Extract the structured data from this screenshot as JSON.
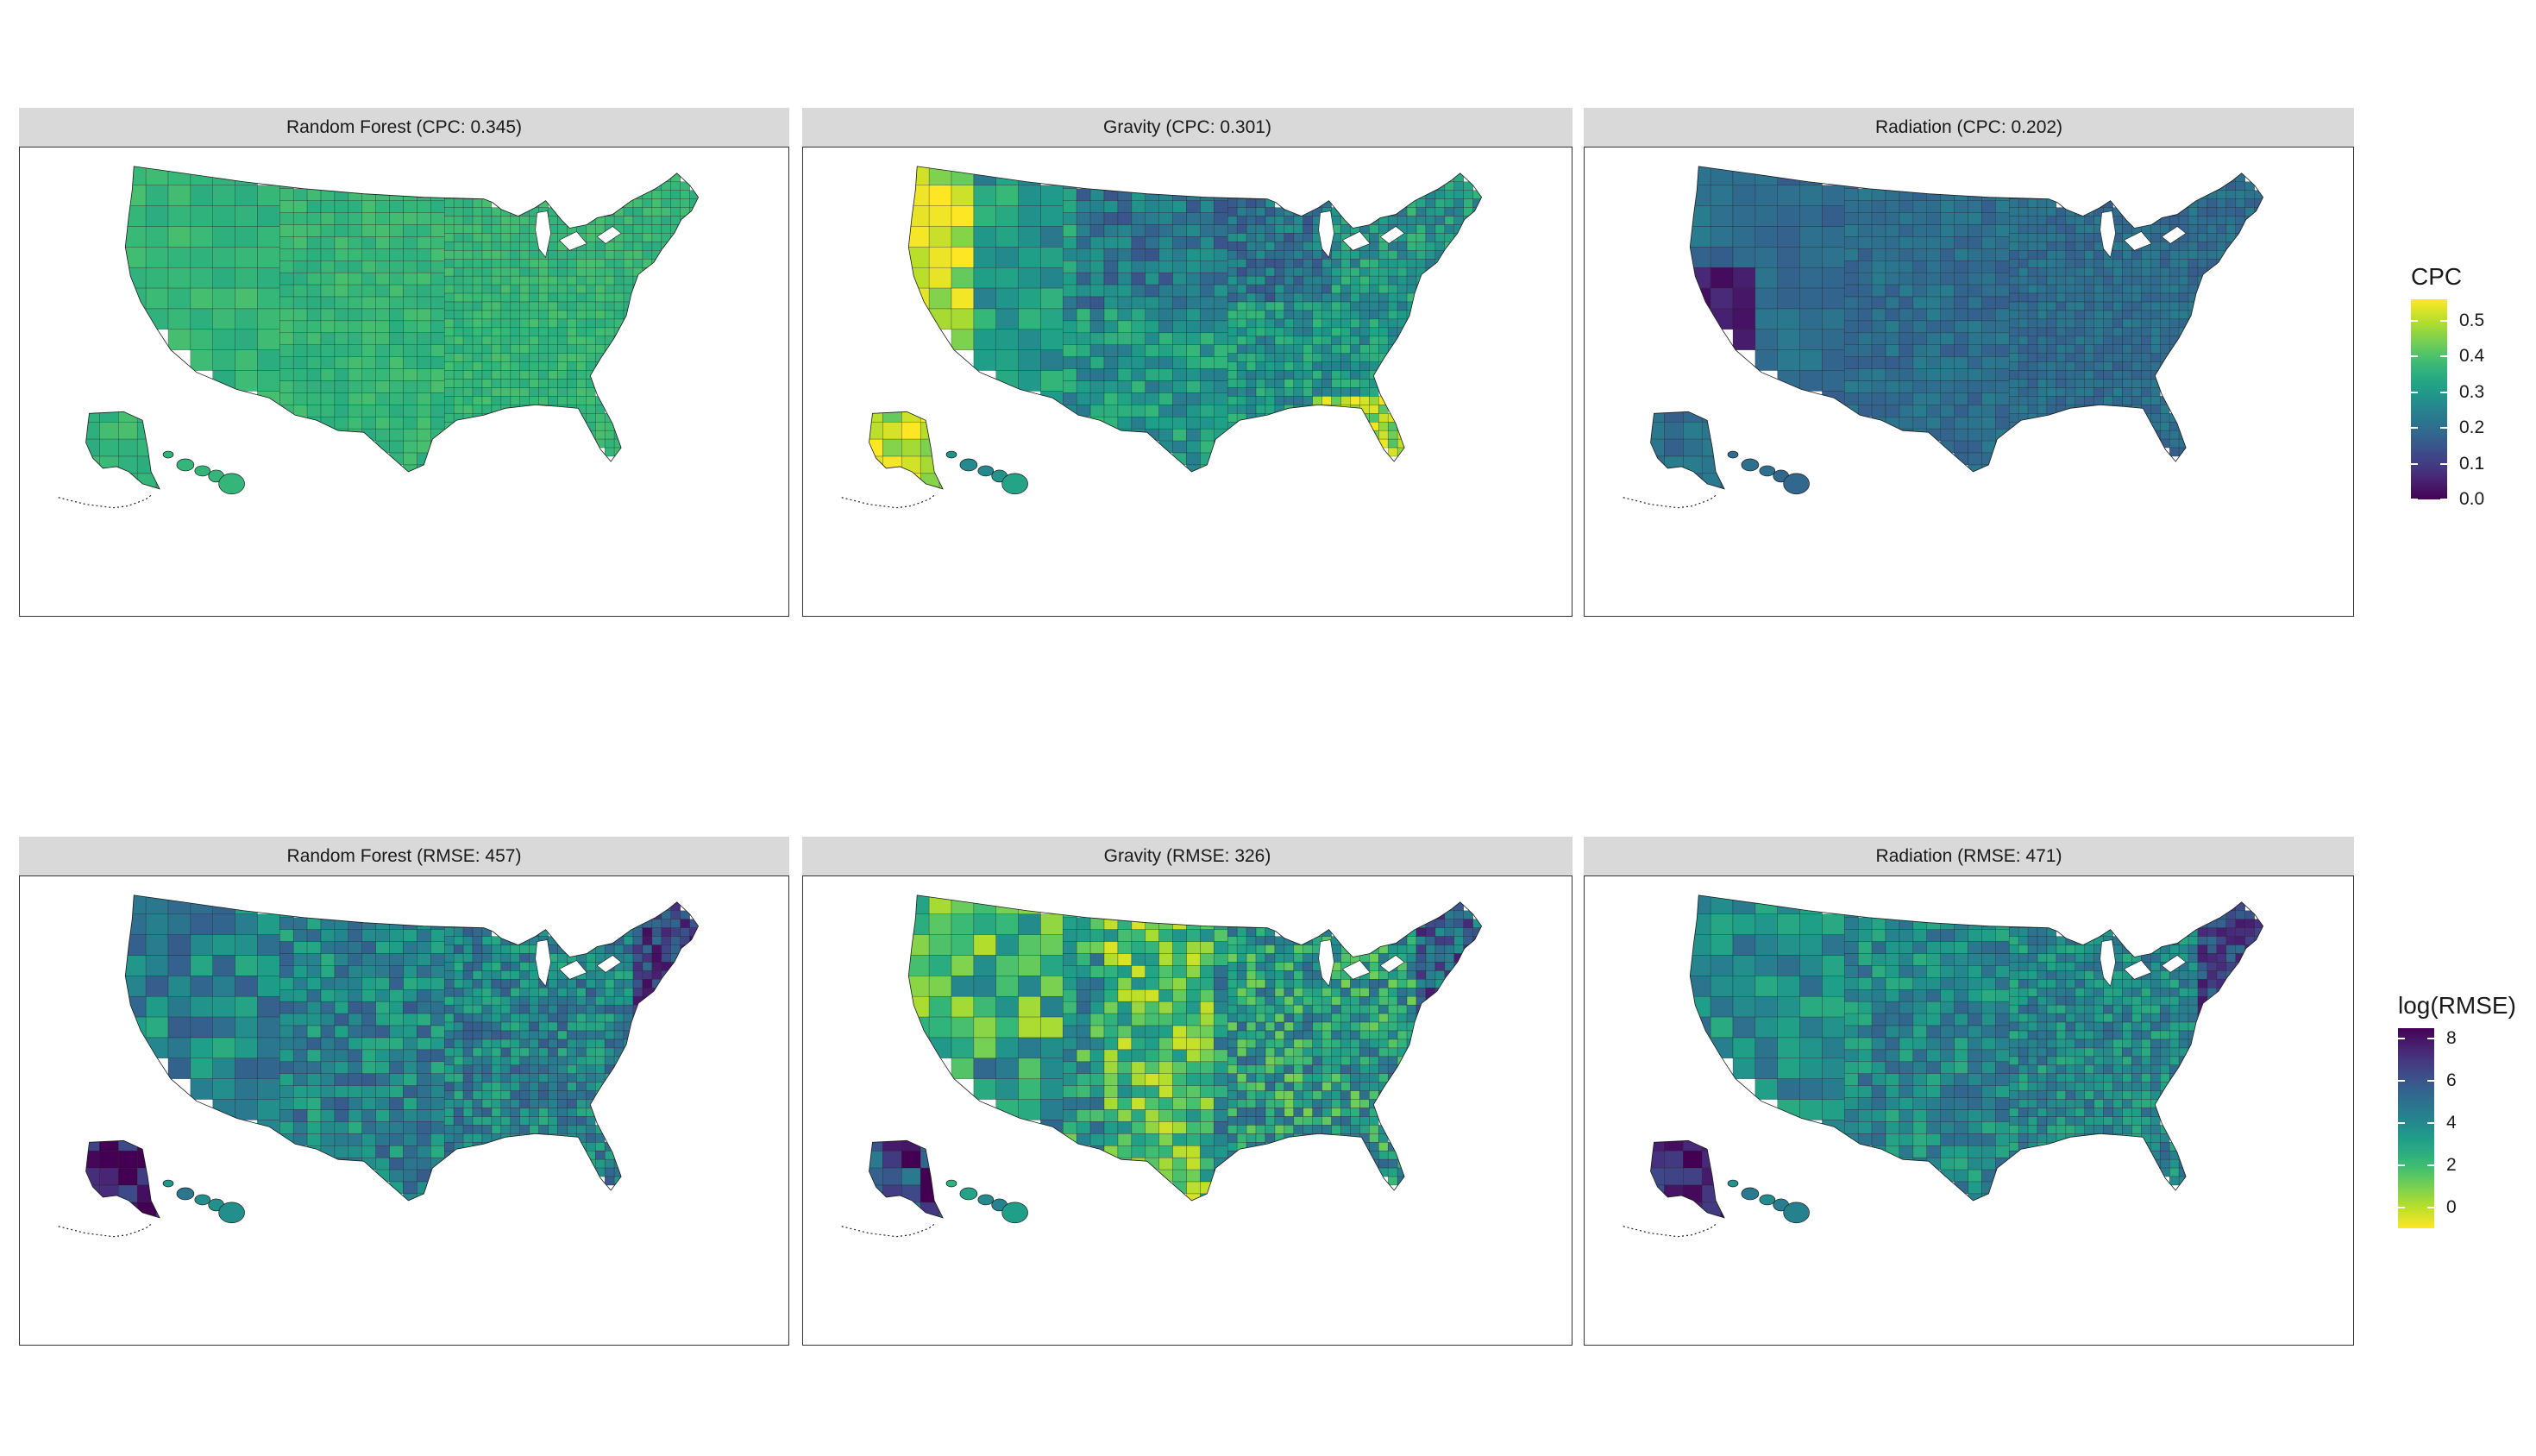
{
  "figure": {
    "rows": [
      {
        "metric": "CPC",
        "panels": [
          {
            "id": "rf-cpc",
            "title": "Random Forest (CPC: 0.345)",
            "model": "Random Forest",
            "score": 0.345,
            "base_level": 0.37,
            "variation": 0.05
          },
          {
            "id": "gravity-cpc",
            "title": "Gravity (CPC: 0.301)",
            "model": "Gravity",
            "score": 0.301,
            "base_level": 0.3,
            "variation": 0.16
          },
          {
            "id": "radiation-cpc",
            "title": "Radiation (CPC: 0.202)",
            "model": "Radiation",
            "score": 0.202,
            "base_level": 0.2,
            "variation": 0.07
          }
        ]
      },
      {
        "metric": "log(RMSE)",
        "panels": [
          {
            "id": "rf-rmse",
            "title": "Random Forest (RMSE: 457)",
            "model": "Random Forest",
            "score": 457,
            "base_level": 4.2,
            "variation": 1.6
          },
          {
            "id": "gravity-rmse",
            "title": "Gravity (RMSE: 326)",
            "model": "Gravity",
            "score": 326,
            "base_level": 3.2,
            "variation": 2.2
          },
          {
            "id": "radiation-rmse",
            "title": "Radiation (RMSE: 471)",
            "model": "Radiation",
            "score": 471,
            "base_level": 4.0,
            "variation": 1.4
          }
        ]
      }
    ]
  },
  "legends": {
    "cpc": {
      "title": "CPC",
      "ticks": [
        "0.5",
        "0.4",
        "0.3",
        "0.2",
        "0.1",
        "0.0"
      ],
      "tick_values": [
        0.5,
        0.4,
        0.3,
        0.2,
        0.1,
        0.0
      ],
      "range": [
        0.0,
        0.56
      ],
      "low_color": "#440154",
      "high_color": "#fde725",
      "direction": "yellow-high"
    },
    "rmse": {
      "title": "log(RMSE)",
      "ticks": [
        "8",
        "6",
        "4",
        "2",
        "0"
      ],
      "tick_values": [
        8,
        6,
        4,
        2,
        0
      ],
      "range": [
        -1.0,
        8.5
      ],
      "low_color": "#fde725",
      "high_color": "#440154",
      "direction": "purple-high"
    }
  },
  "colors": {
    "viridis": [
      "#440154",
      "#482878",
      "#3e4989",
      "#31688e",
      "#26828e",
      "#1f9e89",
      "#35b779",
      "#6ece58",
      "#b5de2b",
      "#fde725"
    ],
    "strip": "#d9d9d9",
    "border": "#333333"
  }
}
